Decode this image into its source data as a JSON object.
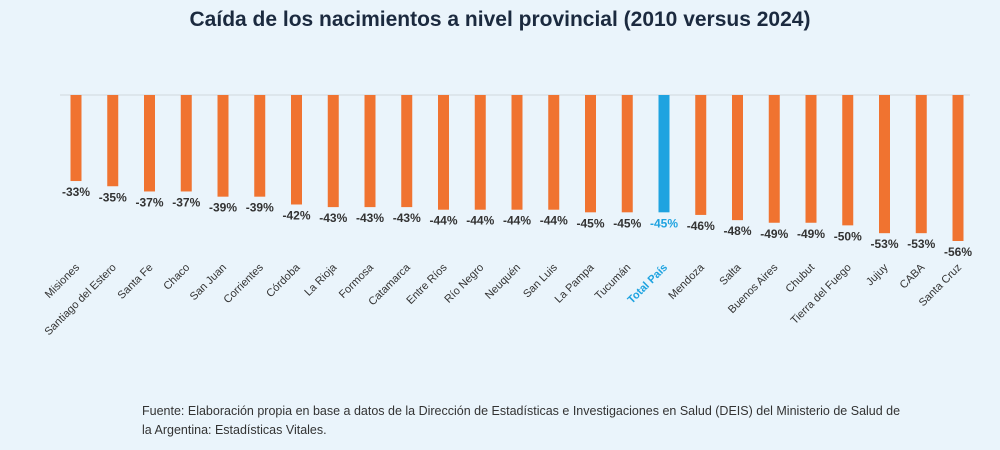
{
  "chart_data": {
    "type": "bar",
    "title": "Caída de los nacimientos a nivel provincial (2010 versus 2024)",
    "categories": [
      "Misiones",
      "Santiago del Estero",
      "Santa Fe",
      "Chaco",
      "San Juan",
      "Corrientes",
      "Córdoba",
      "La Rioja",
      "Formosa",
      "Catamarca",
      "Entre Ríos",
      "Río Negro",
      "Neuquén",
      "San Luis",
      "La Pampa",
      "Tucumán",
      "Total País",
      "Mendoza",
      "Salta",
      "Buenos Aires",
      "Chubut",
      "Tierra del Fuego",
      "Jujuy",
      "CABA",
      "Santa Cruz"
    ],
    "values": [
      -33,
      -35,
      -37,
      -37,
      -39,
      -39,
      -42,
      -43,
      -43,
      -43,
      -44,
      -44,
      -44,
      -44,
      -45,
      -45,
      -45,
      -46,
      -48,
      -49,
      -49,
      -50,
      -53,
      -53,
      -56
    ],
    "labels": [
      "-33%",
      "-35%",
      "-37%",
      "-37%",
      "-39%",
      "-39%",
      "-42%",
      "-43%",
      "-43%",
      "-43%",
      "-44%",
      "-44%",
      "-44%",
      "-44%",
      "-45%",
      "-45%",
      "-45%",
      "-46%",
      "-48%",
      "-49%",
      "-49%",
      "-50%",
      "-53%",
      "-53%",
      "-56%"
    ],
    "highlight_category": "Total País",
    "ylim": [
      -56,
      0
    ],
    "grid": false,
    "xlabel": "",
    "ylabel": "",
    "colors": {
      "bar": "#f07330",
      "highlight": "#1fa3e0",
      "label": "#333333"
    }
  },
  "footer": {
    "source": "Fuente: Elaboración propia en base a datos de la Dirección de Estadísticas e Investigaciones en Salud (DEIS) del Ministerio de Salud de la Argentina: Estadísticas Vitales."
  }
}
